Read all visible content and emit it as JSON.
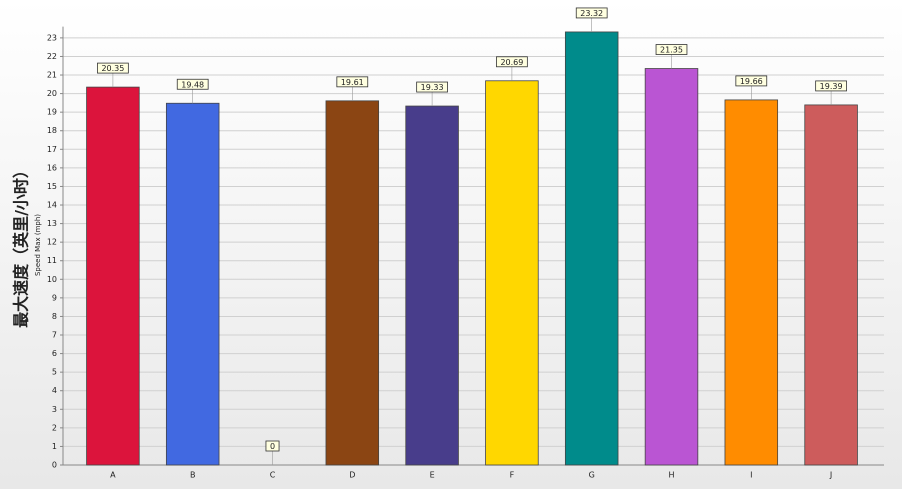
{
  "chart_data": {
    "type": "bar",
    "y_label": "最大速度（英里/小时）",
    "y_label_2": "Speed Max (mph)",
    "categories": [
      "A",
      "B",
      "C",
      "D",
      "E",
      "F",
      "G",
      "H",
      "I",
      "J"
    ],
    "values": [
      20.35,
      19.48,
      0,
      19.61,
      19.33,
      20.69,
      23.32,
      21.35,
      19.66,
      19.39
    ],
    "colors": [
      "#dc143c",
      "#4169e1",
      "#c8b400",
      "#8b4513",
      "#483d8b",
      "#ffd700",
      "#008b8b",
      "#ba55d3",
      "#ff8c00",
      "#cd5c5c"
    ],
    "ylim": [
      0,
      23.5
    ],
    "yticks": [
      0,
      1,
      2,
      3,
      4,
      5,
      6,
      7,
      8,
      9,
      10,
      11,
      12,
      13,
      14,
      15,
      16,
      17,
      18,
      19,
      20,
      21,
      22,
      23
    ],
    "grid": true
  }
}
